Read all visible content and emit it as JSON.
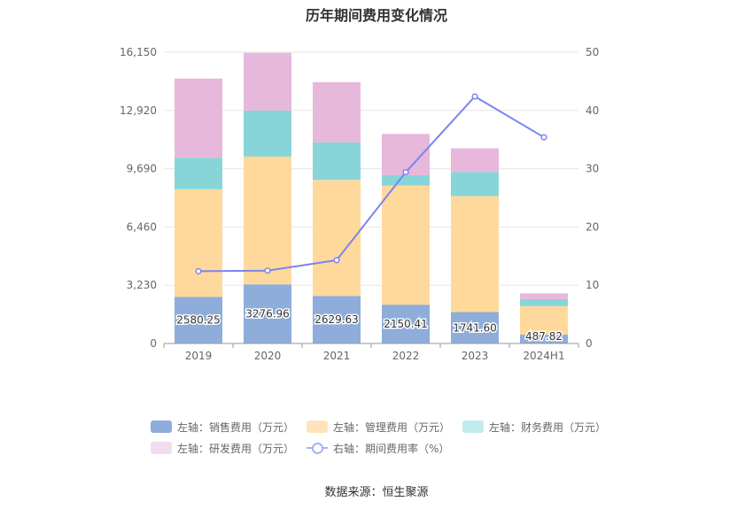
{
  "chart_data": {
    "type": "bar",
    "title": "历年期间费用变化情况",
    "categories": [
      "2019",
      "2020",
      "2021",
      "2022",
      "2023",
      "2024H1"
    ],
    "left_axis": {
      "min": 0,
      "max": 16150,
      "ticks": [
        "0",
        "3,230",
        "6,460",
        "9,690",
        "12,920",
        "16,150"
      ]
    },
    "right_axis": {
      "min": 0,
      "max": 50,
      "ticks": [
        "0",
        "10",
        "20",
        "30",
        "40",
        "50"
      ]
    },
    "series": [
      {
        "name": "左轴：销售费用（万元）",
        "color": "#8eadda",
        "values": [
          2580.25,
          3276.96,
          2629.63,
          2150.41,
          1741.6,
          487.82
        ],
        "labels": [
          "2580.25",
          "3276.96",
          "2629.63",
          "2150.41",
          "1741.60",
          "487.82"
        ]
      },
      {
        "name": "左轴：管理费用（万元）",
        "color": "#ffd99b",
        "values": [
          5970,
          7090,
          6440,
          6610,
          6430,
          1580
        ]
      },
      {
        "name": "左轴：财务费用（万元）",
        "color": "#88d5d9",
        "values": [
          1750,
          2550,
          2080,
          570,
          1340,
          390
        ]
      },
      {
        "name": "左轴：研发费用（万元）",
        "color": "#e6b8db",
        "values": [
          4390,
          3200,
          3340,
          2290,
          1310,
          320
        ]
      }
    ],
    "line_series": {
      "name": "右轴：期间费用率（%）",
      "color": "#7b84f0",
      "values": [
        12.4,
        12.5,
        14.3,
        29.4,
        42.4,
        35.4
      ]
    }
  },
  "legend": {
    "items": [
      "左轴：销售费用（万元）",
      "左轴：管理费用（万元）",
      "左轴：财务费用（万元）",
      "左轴：研发费用（万元）",
      "右轴：期间费用率（%）"
    ],
    "colors": [
      "#8eadda",
      "#ffe4bb",
      "#c0ecee",
      "#f2dcef"
    ]
  },
  "source": "数据来源：恒生聚源"
}
